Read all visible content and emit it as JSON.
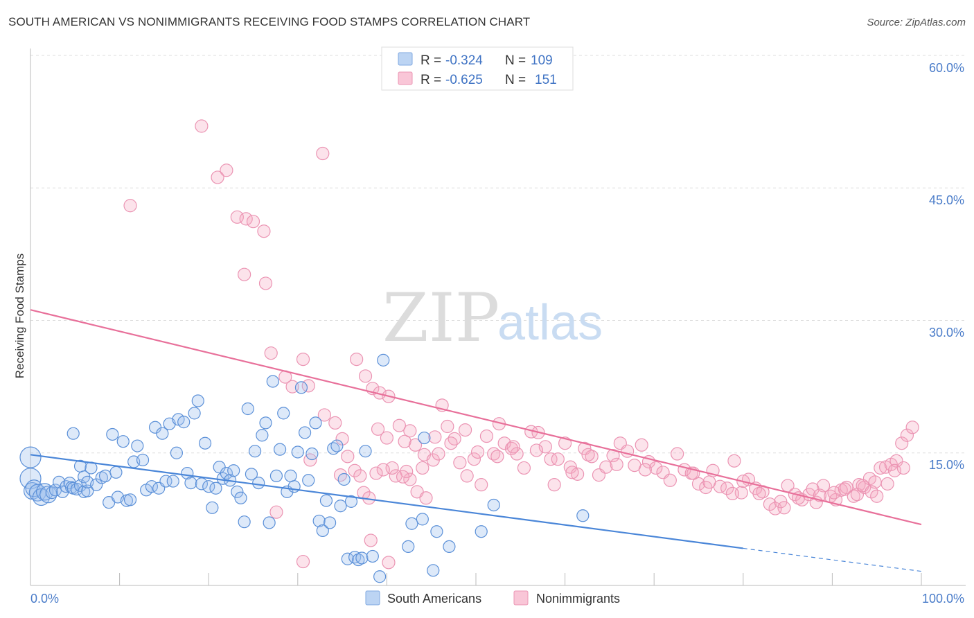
{
  "title": "SOUTH AMERICAN VS NONIMMIGRANTS RECEIVING FOOD STAMPS CORRELATION CHART",
  "source": "Source: ZipAtlas.com",
  "watermark": {
    "part1": "ZIP",
    "part2": "atlas"
  },
  "legend_top": [
    {
      "r_label": "R = ",
      "r_value": "-0.324",
      "n_label": "N = ",
      "n_value": "109",
      "color": "#9dc1ee"
    },
    {
      "r_label": "R = ",
      "r_value": "-0.625",
      "n_label": "N = ",
      "n_value": "151",
      "color": "#f5a9c2"
    }
  ],
  "legend_bottom": [
    {
      "label": "South Americans",
      "color": "#9dc1ee"
    },
    {
      "label": "Nonimmigrants",
      "color": "#f5a9c2"
    }
  ],
  "chart_data": {
    "type": "scatter",
    "ylabel": "Receiving Food Stamps",
    "x_tick_labels": [
      "0.0%",
      "100.0%"
    ],
    "y_tick_labels": [
      "15.0%",
      "30.0%",
      "45.0%",
      "60.0%"
    ],
    "xlim": [
      0,
      100
    ],
    "ylim": [
      0,
      60
    ],
    "grid": true,
    "colors": {
      "blue": "#4a86d8",
      "pink": "#e8709a"
    },
    "series": [
      {
        "name": "South Americans",
        "trend": {
          "x_start": 0,
          "y_start": 14.8,
          "x_end": 80,
          "y_end": 4.2,
          "dashed_to_x": 100,
          "dashed_to_y": 1.6
        },
        "points": [
          [
            0,
            12.1
          ],
          [
            0,
            14.5
          ],
          [
            0.2,
            10.7
          ],
          [
            0.4,
            11.0
          ],
          [
            0.8,
            10.5
          ],
          [
            1.2,
            10.0
          ],
          [
            1.6,
            10.6
          ],
          [
            2.0,
            10.3
          ],
          [
            2.4,
            10.5
          ],
          [
            2.8,
            10.8
          ],
          [
            3.2,
            11.7
          ],
          [
            3.6,
            10.6
          ],
          [
            4.0,
            11.2
          ],
          [
            4.4,
            11.6
          ],
          [
            4.6,
            11.1
          ],
          [
            4.8,
            11.0
          ],
          [
            5.2,
            10.9
          ],
          [
            5.6,
            11.3
          ],
          [
            6.0,
            10.6
          ],
          [
            6.4,
            10.7
          ],
          [
            4.8,
            17.2
          ],
          [
            5.6,
            13.5
          ],
          [
            6.0,
            12.3
          ],
          [
            6.4,
            11.7
          ],
          [
            6.8,
            13.3
          ],
          [
            7.4,
            11.4
          ],
          [
            8.0,
            12.2
          ],
          [
            8.4,
            12.4
          ],
          [
            8.8,
            9.4
          ],
          [
            9.2,
            17.1
          ],
          [
            9.6,
            12.8
          ],
          [
            9.8,
            10.0
          ],
          [
            10.4,
            16.3
          ],
          [
            10.8,
            9.6
          ],
          [
            11.2,
            9.7
          ],
          [
            11.6,
            14.0
          ],
          [
            12.0,
            15.8
          ],
          [
            12.6,
            14.2
          ],
          [
            13.0,
            10.8
          ],
          [
            13.6,
            11.2
          ],
          [
            14.0,
            17.9
          ],
          [
            14.4,
            11.0
          ],
          [
            14.8,
            17.2
          ],
          [
            15.2,
            11.8
          ],
          [
            15.6,
            18.3
          ],
          [
            16.0,
            11.8
          ],
          [
            16.4,
            15.0
          ],
          [
            16.6,
            18.8
          ],
          [
            17.2,
            18.5
          ],
          [
            17.6,
            12.7
          ],
          [
            18.0,
            11.6
          ],
          [
            18.4,
            19.5
          ],
          [
            18.8,
            20.9
          ],
          [
            19.2,
            11.5
          ],
          [
            19.6,
            16.1
          ],
          [
            20.0,
            11.2
          ],
          [
            20.4,
            8.8
          ],
          [
            20.8,
            11.0
          ],
          [
            21.2,
            13.4
          ],
          [
            21.6,
            12.1
          ],
          [
            22.0,
            12.7
          ],
          [
            22.4,
            11.9
          ],
          [
            22.8,
            13.0
          ],
          [
            23.2,
            10.6
          ],
          [
            23.6,
            9.9
          ],
          [
            24.0,
            7.2
          ],
          [
            24.4,
            20.0
          ],
          [
            24.8,
            12.6
          ],
          [
            25.2,
            15.2
          ],
          [
            25.6,
            11.6
          ],
          [
            26.0,
            17.0
          ],
          [
            26.4,
            18.4
          ],
          [
            26.8,
            7.1
          ],
          [
            27.2,
            23.1
          ],
          [
            27.6,
            12.4
          ],
          [
            28.0,
            15.4
          ],
          [
            28.4,
            19.5
          ],
          [
            28.8,
            10.6
          ],
          [
            29.2,
            12.4
          ],
          [
            29.6,
            11.2
          ],
          [
            30.0,
            15.1
          ],
          [
            30.4,
            22.4
          ],
          [
            30.8,
            17.3
          ],
          [
            31.2,
            11.9
          ],
          [
            31.6,
            14.9
          ],
          [
            32.0,
            18.4
          ],
          [
            32.4,
            7.3
          ],
          [
            32.8,
            6.2
          ],
          [
            33.2,
            9.6
          ],
          [
            33.6,
            7.1
          ],
          [
            34.0,
            15.5
          ],
          [
            34.4,
            15.8
          ],
          [
            34.8,
            9.0
          ],
          [
            35.2,
            12.0
          ],
          [
            35.6,
            3.0
          ],
          [
            36.0,
            9.5
          ],
          [
            36.4,
            3.2
          ],
          [
            36.8,
            2.9
          ],
          [
            37.2,
            3.1
          ],
          [
            37.6,
            15.2
          ],
          [
            38.4,
            3.3
          ],
          [
            39.2,
            1.0
          ],
          [
            39.6,
            25.5
          ],
          [
            42.4,
            4.4
          ],
          [
            42.8,
            7.0
          ],
          [
            44.0,
            7.5
          ],
          [
            44.2,
            16.7
          ],
          [
            45.2,
            1.7
          ],
          [
            45.6,
            6.1
          ],
          [
            47.0,
            4.4
          ],
          [
            50.6,
            6.1
          ],
          [
            52.0,
            9.1
          ],
          [
            62.0,
            7.9
          ]
        ]
      },
      {
        "name": "Nonimmigrants",
        "trend": {
          "x_start": 0,
          "y_start": 31.2,
          "x_end": 100,
          "y_end": 6.9
        },
        "points": [
          [
            11.2,
            43.0
          ],
          [
            19.2,
            52.0
          ],
          [
            21.0,
            46.2
          ],
          [
            22.0,
            47.0
          ],
          [
            23.2,
            41.7
          ],
          [
            24.2,
            41.5
          ],
          [
            25.0,
            41.2
          ],
          [
            26.2,
            40.1
          ],
          [
            24.0,
            35.2
          ],
          [
            26.4,
            34.2
          ],
          [
            32.8,
            48.9
          ],
          [
            27.0,
            26.3
          ],
          [
            28.6,
            23.6
          ],
          [
            29.4,
            22.5
          ],
          [
            30.6,
            25.6
          ],
          [
            31.2,
            22.6
          ],
          [
            36.6,
            25.6
          ],
          [
            37.6,
            23.7
          ],
          [
            38.4,
            22.3
          ],
          [
            39.2,
            21.8
          ],
          [
            40.2,
            21.4
          ],
          [
            41.4,
            18.1
          ],
          [
            42.0,
            16.3
          ],
          [
            42.6,
            17.5
          ],
          [
            43.2,
            15.9
          ],
          [
            44.2,
            14.8
          ],
          [
            45.2,
            14.2
          ],
          [
            33.0,
            19.3
          ],
          [
            34.2,
            18.4
          ],
          [
            35.0,
            16.6
          ],
          [
            35.6,
            14.6
          ],
          [
            36.4,
            13.0
          ],
          [
            37.0,
            12.4
          ],
          [
            37.4,
            10.5
          ],
          [
            38.0,
            9.9
          ],
          [
            39.0,
            17.7
          ],
          [
            40.0,
            16.7
          ],
          [
            41.0,
            12.4
          ],
          [
            42.6,
            12.0
          ],
          [
            43.4,
            10.6
          ],
          [
            44.4,
            9.9
          ],
          [
            45.4,
            16.8
          ],
          [
            46.2,
            20.4
          ],
          [
            46.8,
            18.0
          ],
          [
            47.6,
            16.6
          ],
          [
            48.2,
            13.9
          ],
          [
            49.0,
            12.4
          ],
          [
            49.8,
            14.3
          ],
          [
            50.6,
            11.4
          ],
          [
            51.2,
            16.9
          ],
          [
            52.0,
            14.9
          ],
          [
            52.6,
            18.3
          ],
          [
            53.2,
            16.1
          ],
          [
            54.0,
            15.5
          ],
          [
            54.6,
            14.9
          ],
          [
            55.4,
            13.3
          ],
          [
            56.2,
            17.4
          ],
          [
            57.0,
            17.3
          ],
          [
            57.8,
            15.7
          ],
          [
            58.4,
            14.3
          ],
          [
            59.2,
            14.3
          ],
          [
            60.0,
            16.1
          ],
          [
            60.6,
            13.4
          ],
          [
            61.4,
            12.6
          ],
          [
            62.2,
            15.5
          ],
          [
            63.0,
            14.6
          ],
          [
            63.8,
            12.5
          ],
          [
            64.6,
            13.4
          ],
          [
            65.4,
            14.7
          ],
          [
            66.2,
            16.1
          ],
          [
            67.0,
            15.2
          ],
          [
            67.8,
            13.6
          ],
          [
            68.6,
            15.9
          ],
          [
            69.4,
            14.0
          ],
          [
            70.2,
            13.3
          ],
          [
            71.0,
            12.8
          ],
          [
            71.8,
            11.9
          ],
          [
            72.6,
            14.9
          ],
          [
            73.4,
            13.1
          ],
          [
            74.2,
            12.7
          ],
          [
            75.0,
            11.5
          ],
          [
            75.8,
            11.1
          ],
          [
            76.6,
            13.0
          ],
          [
            77.4,
            11.2
          ],
          [
            78.2,
            11.0
          ],
          [
            79.0,
            14.1
          ],
          [
            79.8,
            10.5
          ],
          [
            80.6,
            12.0
          ],
          [
            81.4,
            11.0
          ],
          [
            82.2,
            10.6
          ],
          [
            83.0,
            9.2
          ],
          [
            83.6,
            8.7
          ],
          [
            84.2,
            9.5
          ],
          [
            85.0,
            11.3
          ],
          [
            85.8,
            10.3
          ],
          [
            86.6,
            9.7
          ],
          [
            87.4,
            10.3
          ],
          [
            88.2,
            9.4
          ],
          [
            89.0,
            11.3
          ],
          [
            89.8,
            10.1
          ],
          [
            90.4,
            9.7
          ],
          [
            91.0,
            10.8
          ],
          [
            91.6,
            11.1
          ],
          [
            92.4,
            10.1
          ],
          [
            93.0,
            11.4
          ],
          [
            93.6,
            11.1
          ],
          [
            94.2,
            12.1
          ],
          [
            94.8,
            11.7
          ],
          [
            95.4,
            13.3
          ],
          [
            96.0,
            13.4
          ],
          [
            96.6,
            13.7
          ],
          [
            97.2,
            14.1
          ],
          [
            97.8,
            16.1
          ],
          [
            98.4,
            17.0
          ],
          [
            99.0,
            17.9
          ],
          [
            74.4,
            12.7
          ],
          [
            76.2,
            11.7
          ],
          [
            78.8,
            10.4
          ],
          [
            80.0,
            11.8
          ],
          [
            81.8,
            10.4
          ],
          [
            84.6,
            8.8
          ],
          [
            86.2,
            9.9
          ],
          [
            87.8,
            10.9
          ],
          [
            88.6,
            10.2
          ],
          [
            90.2,
            10.5
          ],
          [
            91.4,
            10.9
          ],
          [
            92.8,
            10.3
          ],
          [
            93.4,
            11.3
          ],
          [
            94.4,
            10.6
          ],
          [
            95.0,
            10.1
          ],
          [
            96.2,
            11.5
          ],
          [
            97.0,
            13.0
          ],
          [
            98.0,
            13.3
          ],
          [
            69.0,
            13.1
          ],
          [
            65.8,
            13.7
          ],
          [
            62.6,
            14.8
          ],
          [
            60.8,
            12.8
          ],
          [
            58.8,
            11.4
          ],
          [
            56.8,
            15.3
          ],
          [
            54.2,
            15.7
          ],
          [
            52.4,
            14.6
          ],
          [
            50.2,
            15.1
          ],
          [
            48.8,
            17.6
          ],
          [
            47.2,
            16.1
          ],
          [
            45.8,
            14.9
          ],
          [
            44.0,
            13.3
          ],
          [
            42.2,
            12.9
          ],
          [
            40.6,
            13.3
          ],
          [
            39.6,
            13.1
          ],
          [
            38.8,
            12.7
          ],
          [
            31.4,
            14.2
          ],
          [
            34.8,
            12.5
          ],
          [
            41.8,
            12.3
          ],
          [
            27.6,
            8.3
          ],
          [
            38.2,
            5.1
          ],
          [
            40.2,
            2.6
          ],
          [
            30.6,
            2.7
          ]
        ]
      }
    ]
  }
}
